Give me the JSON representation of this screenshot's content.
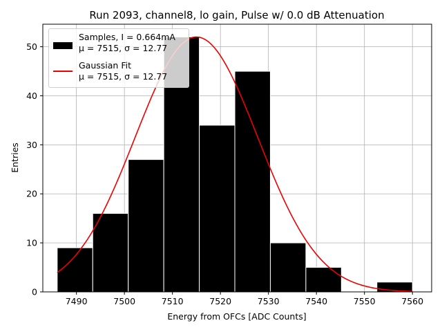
{
  "chart_data": {
    "type": "bar",
    "title": "Run 2093, channel8, lo gain, Pulse w/ 0.0 dB Attenuation",
    "xlabel": "Energy from OFCs [ADC Counts]",
    "ylabel": "Entries",
    "xlim": [
      7483,
      7564
    ],
    "ylim": [
      0,
      54.6
    ],
    "xticks": [
      7490,
      7500,
      7510,
      7520,
      7530,
      7540,
      7550,
      7560
    ],
    "yticks": [
      0,
      10,
      20,
      30,
      40,
      50
    ],
    "grid": true,
    "bins": [
      {
        "x0": 7486.0,
        "x1": 7493.4,
        "count": 9
      },
      {
        "x0": 7493.4,
        "x1": 7500.8,
        "count": 16
      },
      {
        "x0": 7500.8,
        "x1": 7508.2,
        "count": 27
      },
      {
        "x0": 7508.2,
        "x1": 7515.6,
        "count": 52
      },
      {
        "x0": 7515.6,
        "x1": 7523.0,
        "count": 34
      },
      {
        "x0": 7523.0,
        "x1": 7530.4,
        "count": 45
      },
      {
        "x0": 7530.4,
        "x1": 7537.8,
        "count": 10
      },
      {
        "x0": 7537.8,
        "x1": 7545.2,
        "count": 5
      },
      {
        "x0": 7545.2,
        "x1": 7552.6,
        "count": 0
      },
      {
        "x0": 7552.6,
        "x1": 7560.0,
        "count": 2
      }
    ],
    "fit": {
      "type": "gaussian",
      "mu": 7515,
      "sigma": 12.77,
      "amplitude": 52,
      "x_range": [
        7486,
        7560
      ]
    },
    "colors": {
      "bars": "#000000",
      "bar_edge": "#ffffff",
      "fit": "#ee0000",
      "grid": "#b0b0b0"
    },
    "legend_position": "top-left",
    "legend": [
      {
        "line1": "Samples, I = 0.664mA",
        "line2": "μ = 7515, σ = 12.77",
        "kind": "bar"
      },
      {
        "line1": "Gaussian Fit",
        "line2": "μ = 7515, σ = 12.77",
        "kind": "line"
      }
    ]
  }
}
